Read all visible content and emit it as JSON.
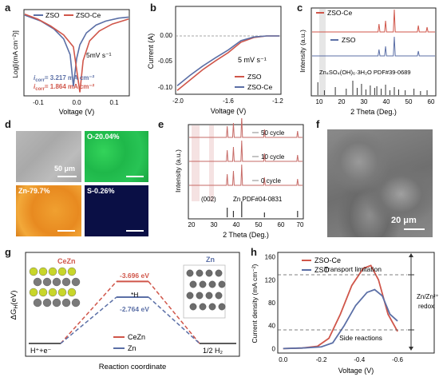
{
  "panel_labels": {
    "a": "a",
    "b": "b",
    "c": "c",
    "d": "d",
    "e": "e",
    "f": "f",
    "g": "g",
    "h": "h"
  },
  "colors": {
    "zso": "#5b6fa6",
    "zso_ce": "#d0564a",
    "ref": "#333333",
    "hint": "#f1d6d6"
  },
  "panel_a": {
    "ylabel": "Log[i(mA cm⁻²)]",
    "xlabel": "Voltage (V)",
    "legend": [
      "ZSO",
      "ZSO-Ce"
    ],
    "scan_rate": "5mV s⁻¹",
    "icorr_zso": "i",
    "icorr_zso_sub": "corr",
    "icorr_zso_val": "= 3.217 mA cm⁻²",
    "icorr_ce_val": "= 1.864 mA cm⁻²",
    "xticks": [
      "-0.1",
      "0.0",
      "0.1"
    ]
  },
  "panel_b": {
    "ylabel": "Current (A)",
    "xlabel": "Voltage (V)",
    "xticks": [
      "-2.0",
      "-1.6",
      "-1.2"
    ],
    "yticks": [
      "0.00",
      "-0.05",
      "-0.10"
    ],
    "scan_rate": "5 mV s⁻¹",
    "legend": [
      "ZSO",
      "ZSO-Ce"
    ]
  },
  "panel_c": {
    "ylabel": "Intensity (a.u.)",
    "xlabel": "2 Theta (Deg.)",
    "series": [
      "ZSO-Ce",
      "ZSO"
    ],
    "reference": "Zn₄SO₄(OH)₆·3H₂O  PDF#39-0689",
    "xticks": [
      "10",
      "20",
      "30",
      "40",
      "50",
      "60"
    ]
  },
  "panel_d": {
    "labels": [
      "O-20.04%",
      "Zn-79.7%",
      "S-0.26%"
    ],
    "scalebar": "50 μm"
  },
  "panel_e": {
    "ylabel": "Intensity (a.u.)",
    "xlabel": "2 Theta (Deg.)",
    "cycles": [
      "50 cycle",
      "10 cycle",
      "0 cycle"
    ],
    "peak_label": "(002)",
    "reference": "Zn PDF#04-0831",
    "xticks": [
      "20",
      "30",
      "40",
      "50",
      "60",
      "70"
    ]
  },
  "panel_f": {
    "scalebar": "20 μm"
  },
  "panel_g": {
    "ylabel": "ΔG",
    "ylabel_sub": "H",
    "ylabel_unit": "(eV)",
    "xlabel": "Reaction coordinate",
    "left_state": "H⁺+e⁻",
    "right_state": "1/2 H₂",
    "middle_state": "*H",
    "ce_value": "-3.696 eV",
    "zn_value": "-2.764 eV",
    "struct_ce": "CeZn",
    "struct_zn": "Zn",
    "legend": [
      "CeZn",
      "Zn"
    ]
  },
  "panel_h": {
    "ylabel": "Current density (mA cm⁻²)",
    "xlabel": "Voltage (V)",
    "legend": [
      "ZSO-Ce",
      "ZSO"
    ],
    "transport": "Transport limitation",
    "side": "Side reactions",
    "redox_1": "Zn/Zn²⁺",
    "redox_2": "redox",
    "xticks": [
      "0.0",
      "-0.2",
      "-0.4",
      "-0.6"
    ],
    "yticks": [
      "0",
      "40",
      "80",
      "120",
      "160"
    ]
  },
  "chart_data": [
    {
      "type": "line",
      "panel": "a",
      "xlabel": "Voltage (V)",
      "ylabel": "Log[i(mA cm⁻²)]",
      "xlim": [
        -0.17,
        0.15
      ],
      "series": [
        {
          "name": "ZSO",
          "x": [
            -0.17,
            -0.12,
            -0.08,
            -0.05,
            -0.03,
            -0.02,
            -0.01,
            0.0,
            0.02,
            0.05,
            0.08,
            0.12,
            0.15
          ],
          "y": [
            2.0,
            1.7,
            1.3,
            0.8,
            0.0,
            -1.6,
            -0.2,
            0.5,
            1.1,
            1.5,
            1.7,
            1.85,
            1.9
          ]
        },
        {
          "name": "ZSO-Ce",
          "x": [
            -0.17,
            -0.13,
            -0.09,
            -0.05,
            -0.02,
            0.0,
            0.01,
            0.03,
            0.06,
            0.1,
            0.15
          ],
          "y": [
            2.05,
            1.8,
            1.45,
            1.0,
            0.4,
            -1.9,
            -0.3,
            0.7,
            1.2,
            1.55,
            1.8
          ]
        }
      ]
    },
    {
      "type": "line",
      "panel": "b",
      "xlabel": "Voltage (V)",
      "ylabel": "Current (A)",
      "xlim": [
        -2.0,
        -1.2
      ],
      "ylim": [
        -0.11,
        0.01
      ],
      "series": [
        {
          "name": "ZSO",
          "x": [
            -2.0,
            -1.9,
            -1.8,
            -1.7,
            -1.6,
            -1.55,
            -1.5,
            -1.4,
            -1.3,
            -1.2
          ],
          "y": [
            -0.105,
            -0.085,
            -0.065,
            -0.048,
            -0.032,
            -0.022,
            -0.012,
            -0.003,
            0.0,
            0.0
          ]
        },
        {
          "name": "ZSO-Ce",
          "x": [
            -2.0,
            -1.9,
            -1.8,
            -1.7,
            -1.6,
            -1.55,
            -1.5,
            -1.4,
            -1.3,
            -1.2
          ],
          "y": [
            -0.096,
            -0.076,
            -0.058,
            -0.042,
            -0.027,
            -0.018,
            -0.009,
            -0.002,
            0.0,
            0.0
          ]
        }
      ]
    },
    {
      "type": "line",
      "panel": "h",
      "xlabel": "Voltage (V)",
      "ylabel": "Current density (mA cm⁻²)",
      "xlim": [
        0.02,
        -0.65
      ],
      "ylim": [
        -5,
        165
      ],
      "series": [
        {
          "name": "ZSO-Ce",
          "x": [
            0.0,
            -0.1,
            -0.18,
            -0.24,
            -0.3,
            -0.36,
            -0.42,
            -0.46,
            -0.5,
            -0.55,
            -0.6
          ],
          "y": [
            0,
            1,
            4,
            18,
            60,
            110,
            140,
            145,
            120,
            60,
            30
          ]
        },
        {
          "name": "ZSO",
          "x": [
            0.0,
            -0.1,
            -0.2,
            -0.26,
            -0.32,
            -0.38,
            -0.44,
            -0.48,
            -0.52,
            -0.56,
            -0.6
          ],
          "y": [
            0,
            1,
            3,
            10,
            40,
            75,
            98,
            103,
            92,
            60,
            48
          ]
        }
      ]
    },
    {
      "type": "line",
      "panel": "g",
      "xlabel": "Reaction coordinate",
      "ylabel": "ΔGH (eV)",
      "categories": [
        "H⁺+e⁻",
        "*H",
        "1/2 H₂"
      ],
      "series": [
        {
          "name": "CeZn",
          "values": [
            0,
            -3.696,
            0
          ]
        },
        {
          "name": "Zn",
          "values": [
            0,
            -2.764,
            0
          ]
        }
      ]
    }
  ]
}
